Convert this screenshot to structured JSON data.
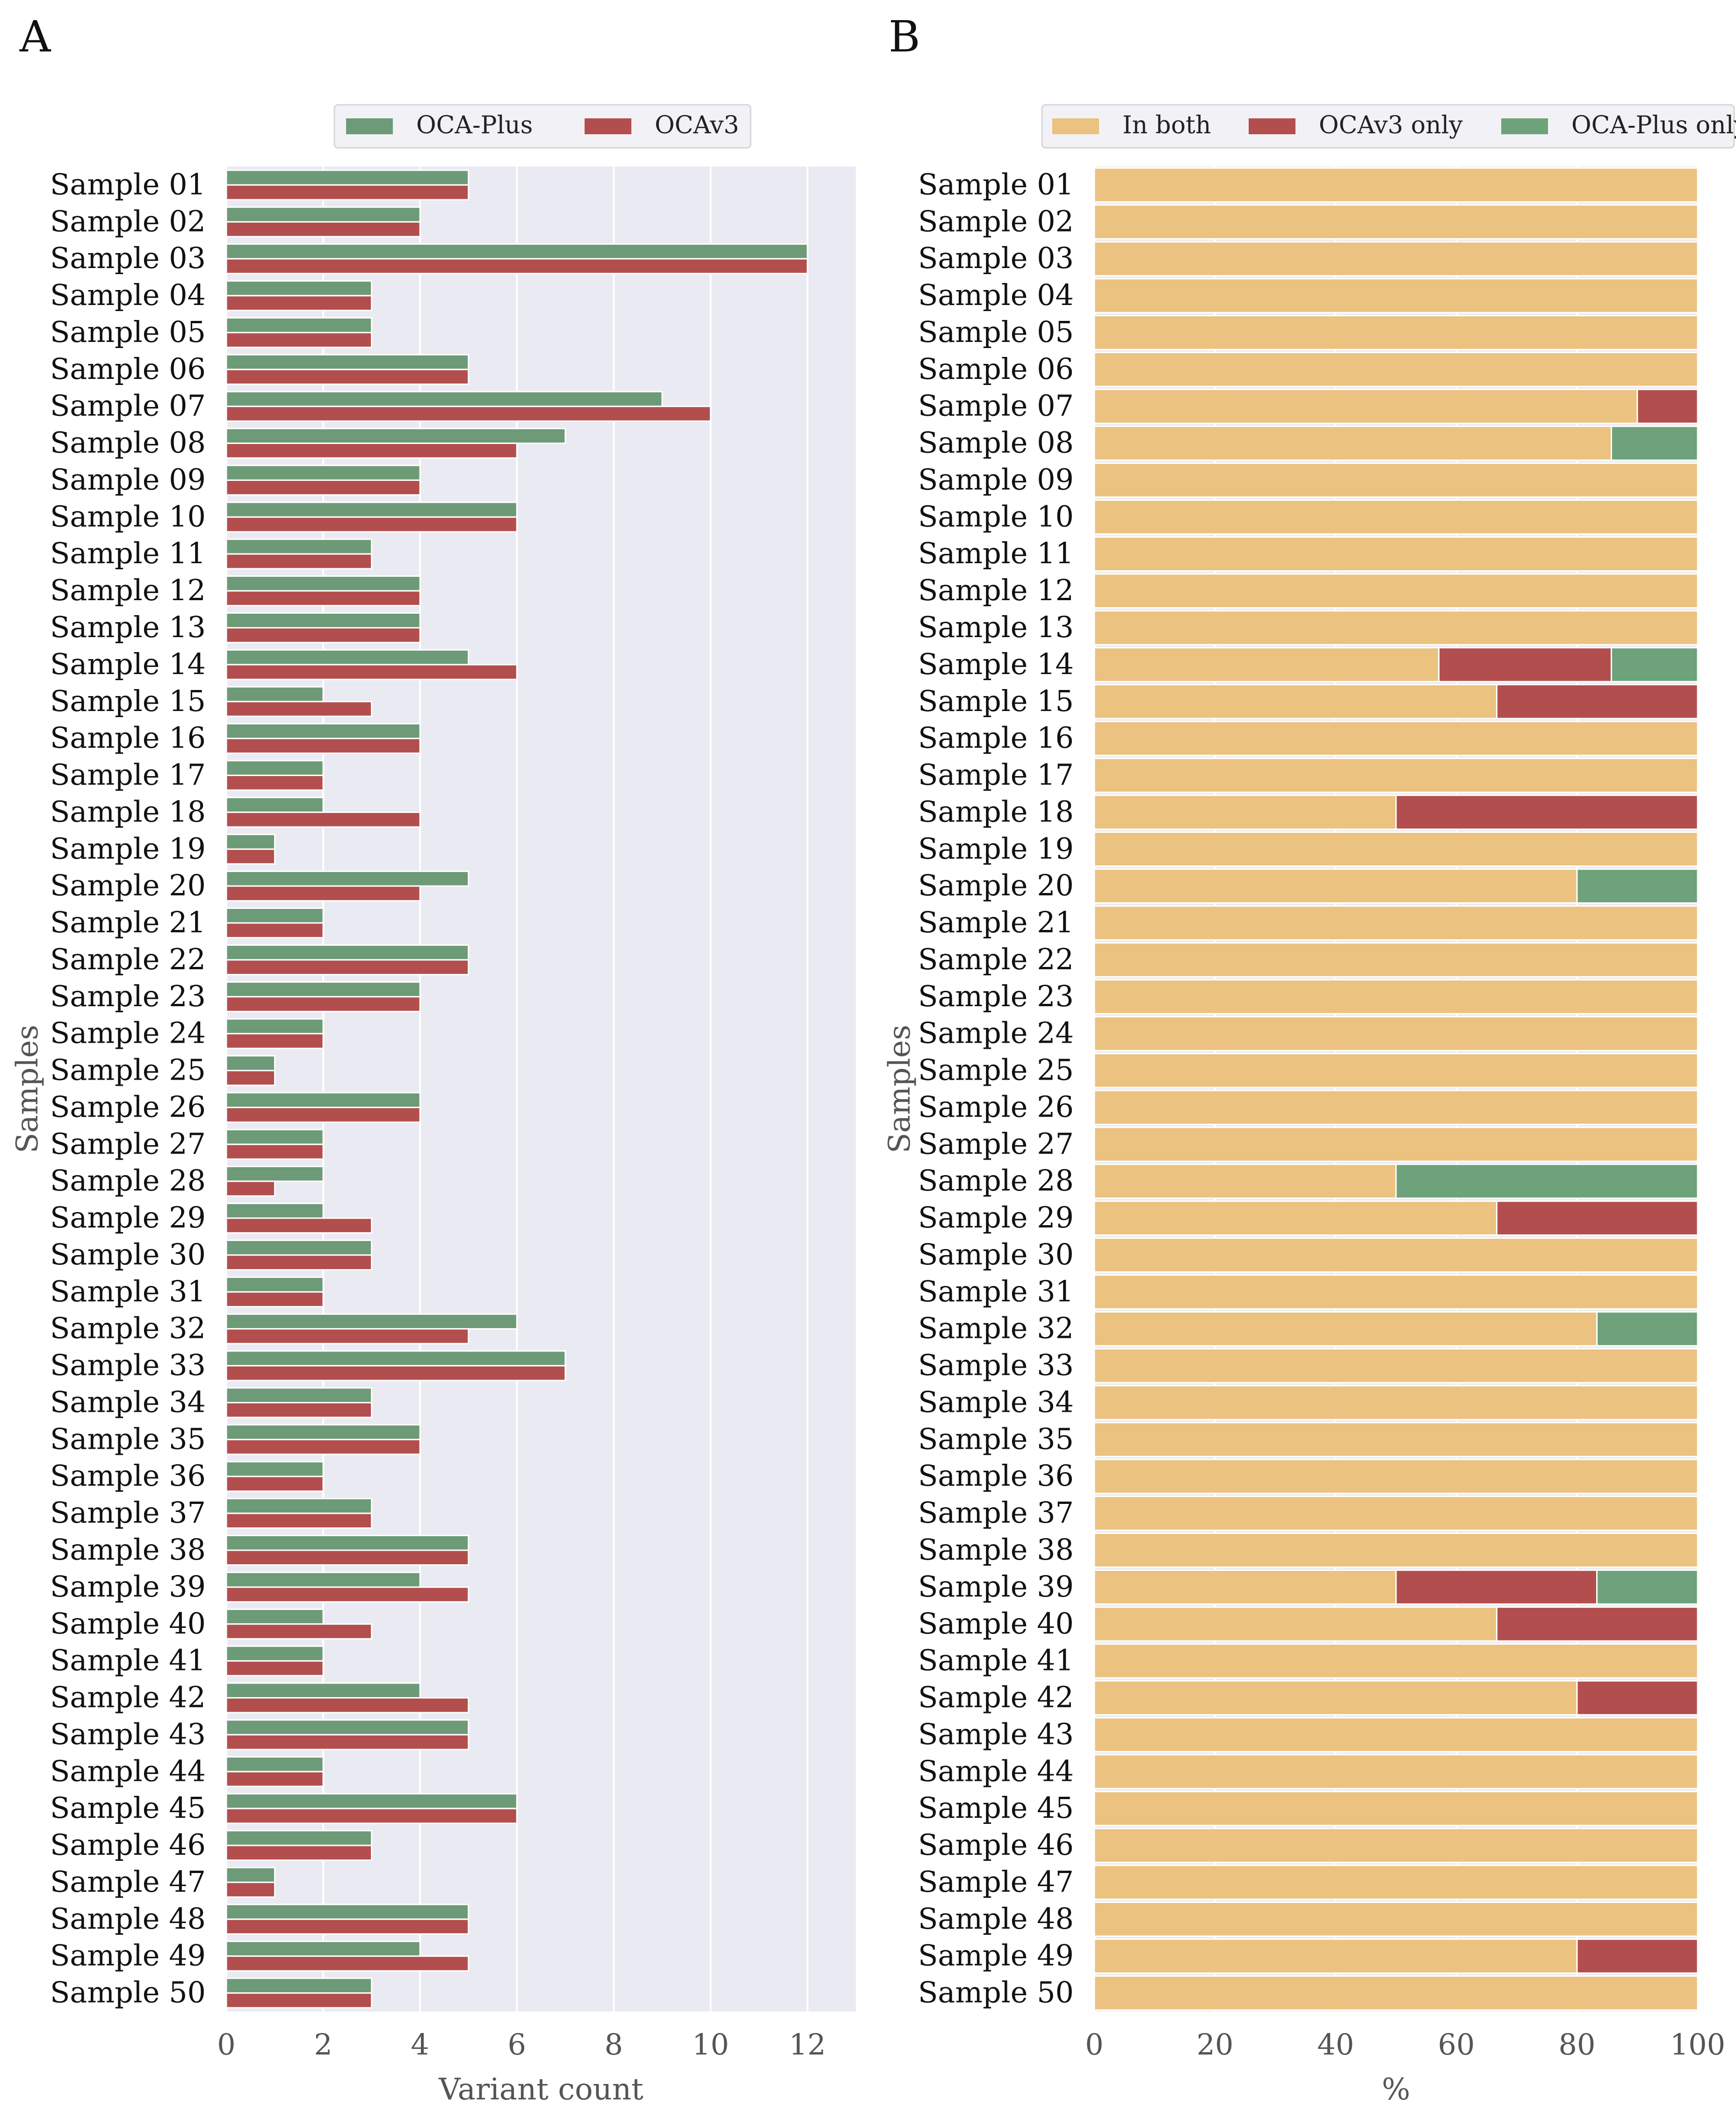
{
  "chart_data": [
    {
      "panel": "A",
      "type": "bar",
      "orientation": "horizontal",
      "xlabel": "Variant count",
      "ylabel": "Samples",
      "xlim": [
        0,
        13
      ],
      "xticks": [
        0,
        2,
        4,
        6,
        8,
        10,
        12
      ],
      "grid": true,
      "legend": "top",
      "categories": [
        "Sample 01",
        "Sample 02",
        "Sample 03",
        "Sample 04",
        "Sample 05",
        "Sample 06",
        "Sample 07",
        "Sample 08",
        "Sample 09",
        "Sample 10",
        "Sample 11",
        "Sample 12",
        "Sample 13",
        "Sample 14",
        "Sample 15",
        "Sample 16",
        "Sample 17",
        "Sample 18",
        "Sample 19",
        "Sample 20",
        "Sample 21",
        "Sample 22",
        "Sample 23",
        "Sample 24",
        "Sample 25",
        "Sample 26",
        "Sample 27",
        "Sample 28",
        "Sample 29",
        "Sample 30",
        "Sample 31",
        "Sample 32",
        "Sample 33",
        "Sample 34",
        "Sample 35",
        "Sample 36",
        "Sample 37",
        "Sample 38",
        "Sample 39",
        "Sample 40",
        "Sample 41",
        "Sample 42",
        "Sample 43",
        "Sample 44",
        "Sample 45",
        "Sample 46",
        "Sample 47",
        "Sample 48",
        "Sample 49",
        "Sample 50"
      ],
      "series": [
        {
          "name": "OCA-Plus",
          "color": "#6d9a77",
          "values": [
            5,
            4,
            12,
            3,
            3,
            5,
            9,
            7,
            4,
            6,
            3,
            4,
            4,
            5,
            2,
            4,
            2,
            2,
            1,
            5,
            2,
            5,
            4,
            2,
            1,
            4,
            2,
            2,
            2,
            3,
            2,
            6,
            7,
            3,
            4,
            2,
            3,
            5,
            4,
            2,
            2,
            4,
            5,
            2,
            6,
            3,
            1,
            5,
            4,
            3
          ]
        },
        {
          "name": "OCAv3",
          "color": "#b34e4e",
          "values": [
            5,
            4,
            12,
            3,
            3,
            5,
            10,
            6,
            4,
            6,
            3,
            4,
            4,
            6,
            3,
            4,
            2,
            4,
            1,
            4,
            2,
            5,
            4,
            2,
            1,
            4,
            2,
            1,
            3,
            3,
            2,
            5,
            7,
            3,
            4,
            2,
            3,
            5,
            5,
            3,
            2,
            5,
            5,
            2,
            6,
            3,
            1,
            5,
            5,
            3
          ]
        }
      ]
    },
    {
      "panel": "B",
      "type": "bar",
      "orientation": "horizontal",
      "stacked": true,
      "xlabel": "%",
      "ylabel": "Samples",
      "xlim": [
        0,
        100
      ],
      "xticks": [
        0,
        20,
        40,
        60,
        80,
        100
      ],
      "grid": true,
      "legend": "top",
      "categories": [
        "Sample 01",
        "Sample 02",
        "Sample 03",
        "Sample 04",
        "Sample 05",
        "Sample 06",
        "Sample 07",
        "Sample 08",
        "Sample 09",
        "Sample 10",
        "Sample 11",
        "Sample 12",
        "Sample 13",
        "Sample 14",
        "Sample 15",
        "Sample 16",
        "Sample 17",
        "Sample 18",
        "Sample 19",
        "Sample 20",
        "Sample 21",
        "Sample 22",
        "Sample 23",
        "Sample 24",
        "Sample 25",
        "Sample 26",
        "Sample 27",
        "Sample 28",
        "Sample 29",
        "Sample 30",
        "Sample 31",
        "Sample 32",
        "Sample 33",
        "Sample 34",
        "Sample 35",
        "Sample 36",
        "Sample 37",
        "Sample 38",
        "Sample 39",
        "Sample 40",
        "Sample 41",
        "Sample 42",
        "Sample 43",
        "Sample 44",
        "Sample 45",
        "Sample 46",
        "Sample 47",
        "Sample 48",
        "Sample 49",
        "Sample 50"
      ],
      "series": [
        {
          "name": "In both",
          "color": "#ebc27f",
          "values": [
            100,
            100,
            100,
            100,
            100,
            100,
            90,
            85.7,
            100,
            100,
            100,
            100,
            100,
            57.1,
            66.7,
            100,
            100,
            50,
            100,
            80,
            100,
            100,
            100,
            100,
            100,
            100,
            100,
            50,
            66.7,
            100,
            100,
            83.3,
            100,
            100,
            100,
            100,
            100,
            100,
            50,
            66.7,
            100,
            80,
            100,
            100,
            100,
            100,
            100,
            100,
            80,
            100
          ]
        },
        {
          "name": "OCAv3 only",
          "color": "#b34e4e",
          "values": [
            0,
            0,
            0,
            0,
            0,
            0,
            10,
            0,
            0,
            0,
            0,
            0,
            0,
            28.6,
            33.3,
            0,
            0,
            50,
            0,
            0,
            0,
            0,
            0,
            0,
            0,
            0,
            0,
            0,
            33.3,
            0,
            0,
            0,
            0,
            0,
            0,
            0,
            0,
            0,
            33.3,
            33.3,
            0,
            20,
            0,
            0,
            0,
            0,
            0,
            0,
            20,
            0
          ]
        },
        {
          "name": "OCA-Plus only",
          "color": "#6da27a",
          "values": [
            0,
            0,
            0,
            0,
            0,
            0,
            0,
            14.3,
            0,
            0,
            0,
            0,
            0,
            14.3,
            0,
            0,
            0,
            0,
            0,
            20,
            0,
            0,
            0,
            0,
            0,
            0,
            0,
            50,
            0,
            0,
            0,
            16.7,
            0,
            0,
            0,
            0,
            0,
            0,
            16.7,
            0,
            0,
            0,
            0,
            0,
            0,
            0,
            0,
            0,
            0,
            0
          ]
        }
      ]
    }
  ]
}
